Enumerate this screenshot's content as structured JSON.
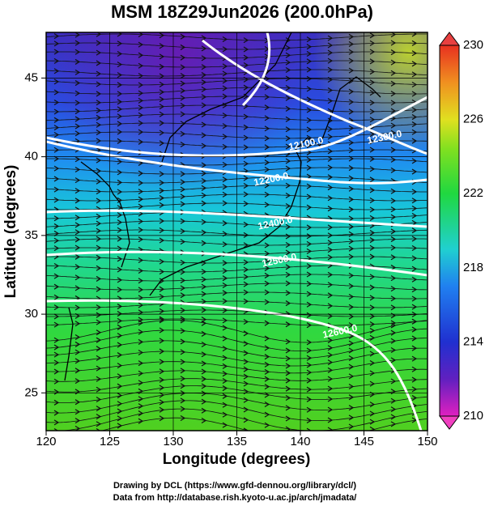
{
  "title": "MSM 18Z29Jun2026 (200.0hPa)",
  "x_axis": {
    "label": "Longitude (degrees)",
    "lim": [
      120,
      150
    ],
    "ticks": [
      120,
      125,
      130,
      135,
      140,
      145,
      150
    ]
  },
  "y_axis": {
    "label": "Latitude  (degrees)",
    "lim": [
      22.6,
      47.9
    ],
    "ticks": [
      25,
      30,
      35,
      40,
      45
    ]
  },
  "colorbar": {
    "lim": [
      210,
      230
    ],
    "ticks": [
      210,
      214,
      218,
      222,
      226,
      230
    ]
  },
  "contour_labels": [
    "12100.0",
    "12200.0",
    "12300.0",
    "12400.0",
    "12500.0",
    "12600.0"
  ],
  "footer": [
    "Drawing by DCL (https://www.gfd-dennou.org/library/dcl/)",
    "Data from http://database.rish.kyoto-u.ac.jp/arch/jmadata/"
  ]
}
